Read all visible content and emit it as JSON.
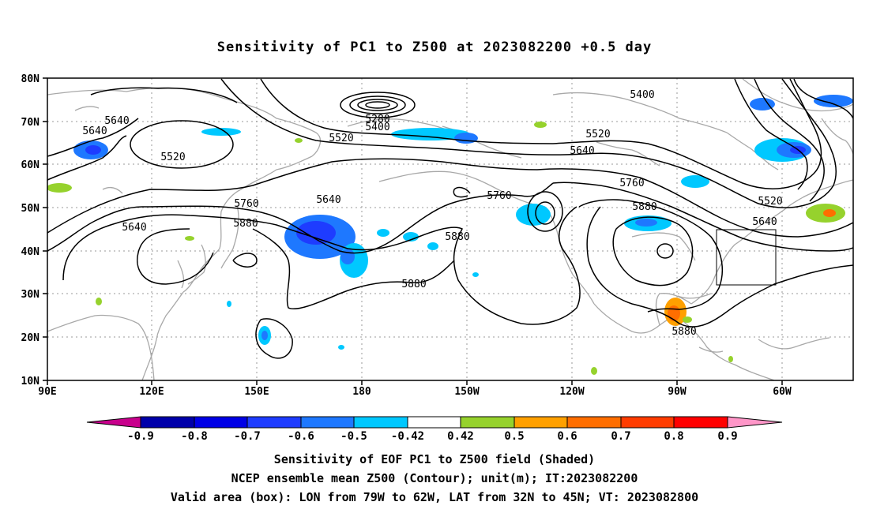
{
  "title": "Sensitivity of PC1 to Z500 at 2023082200 +0.5 day",
  "lat_labels": [
    "80N",
    "70N",
    "60N",
    "50N",
    "40N",
    "30N",
    "20N",
    "10N"
  ],
  "lon_labels": [
    "90E",
    "120E",
    "150E",
    "180",
    "150W",
    "120W",
    "90W",
    "60W"
  ],
  "contour_labels": [
    "5280",
    "5400",
    "5400",
    "5520",
    "5520",
    "5520",
    "5520",
    "5640",
    "5640",
    "5640",
    "5640",
    "5640",
    "5640",
    "5760",
    "5760",
    "5760",
    "5880",
    "5880",
    "5880",
    "5880",
    "5880"
  ],
  "colorbar": {
    "ticks": [
      "-0.9",
      "-0.8",
      "-0.7",
      "-0.6",
      "-0.5",
      "-0.42",
      "0.42",
      "0.5",
      "0.6",
      "0.7",
      "0.8",
      "0.9"
    ],
    "colors": [
      "#c8008c",
      "#0000aa",
      "#0000e6",
      "#1e3cff",
      "#1e78ff",
      "#00c8ff",
      "#ffffff",
      "#96d22d",
      "#ffa000",
      "#ff6e00",
      "#ff3c00",
      "#ff0000",
      "#ff96c8"
    ]
  },
  "captions": [
    "Sensitivity of EOF PC1 to Z500 field (Shaded)",
    "NCEP ensemble mean Z500 (Contour); unit(m); IT:2023082200",
    "Valid area (box): LON from 79W to 62W, LAT from 32N to 45N; VT: 2023082800"
  ],
  "valid_box": {
    "lon_min": -79,
    "lon_max": -62,
    "lat_min": 32,
    "lat_max": 45
  }
}
